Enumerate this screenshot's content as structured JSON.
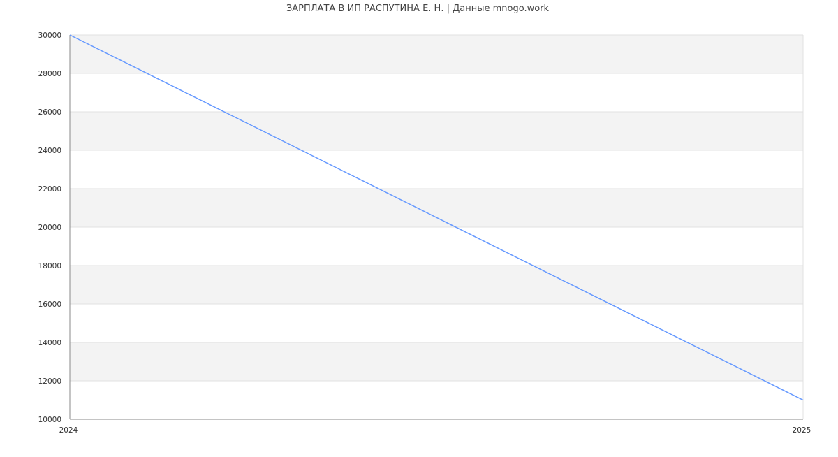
{
  "chart_data": {
    "type": "line",
    "title": "ЗАРПЛАТА В ИП РАСПУТИНА Е. Н. | Данные mnogo.work",
    "xlabel": "",
    "ylabel": "",
    "x_ticks": [
      "2024",
      "2025"
    ],
    "xlim": [
      2024,
      2025
    ],
    "ylim": [
      10000,
      30000
    ],
    "y_ticks": [
      10000,
      12000,
      14000,
      16000,
      18000,
      20000,
      22000,
      24000,
      26000,
      28000,
      30000
    ],
    "grid": true,
    "series": [
      {
        "x": [
          2024,
          2025
        ],
        "values": [
          30000,
          11000
        ]
      }
    ],
    "colors": {
      "line": "#6699ff",
      "band": "#f3f3f3",
      "grid": "#e0e0e0",
      "axis": "#888888",
      "text": "#333333"
    }
  }
}
